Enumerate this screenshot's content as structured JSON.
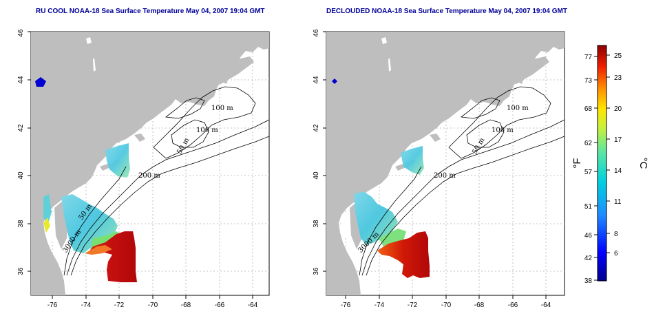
{
  "panels": [
    {
      "id": "left",
      "title": "RU COOL NOAA-18 Sea Surface Temperature May 04, 2007 19:04 GMT",
      "contour_labels": [
        "100 m",
        "100 m",
        "50 m",
        "200 m",
        "50 m",
        "3000 m"
      ]
    },
    {
      "id": "right",
      "title": "DECLOUDED NOAA-18 Sea Surface Temperature May 04, 2007 19:04 GMT",
      "contour_labels": [
        "100 m",
        "100 m",
        "50 m",
        "200 m",
        "3000 m"
      ]
    }
  ],
  "axes": {
    "x_ticks": [
      "-76",
      "-74",
      "-72",
      "-70",
      "-68",
      "-66",
      "-64"
    ],
    "y_ticks": [
      "36",
      "38",
      "40",
      "42",
      "44",
      "46"
    ],
    "xlim": [
      -77.2,
      -63.1
    ],
    "ylim": [
      35,
      46.2
    ]
  },
  "colorbar": {
    "fahrenheit_label": "°F",
    "celsius_label": "°C",
    "fahrenheit_ticks": [
      "38",
      "42",
      "46",
      "51",
      "57",
      "62",
      "68",
      "73",
      "77"
    ],
    "celsius_ticks": [
      "6",
      "8",
      "11",
      "14",
      "17",
      "20",
      "23",
      "25"
    ],
    "min_f": 38,
    "max_f": 79
  },
  "colors": {
    "land": "#bebebe",
    "title": "#000099",
    "grid": "#b0b0b0"
  }
}
